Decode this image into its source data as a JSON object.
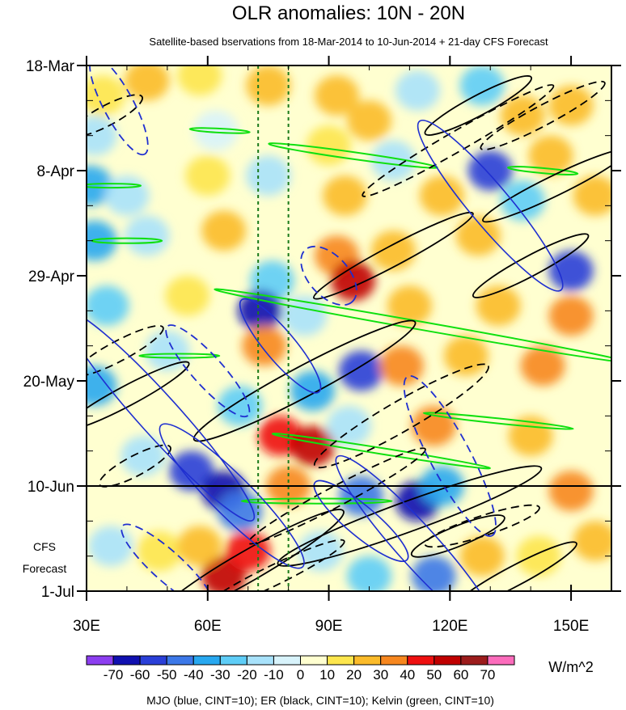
{
  "chart_data": {
    "type": "heatmap",
    "title": "OLR anomalies: 10N - 20N",
    "subtitle": "Satellite-based bservations from 18-Mar-2014 to 10-Jun-2014 + 21-day CFS Forecast",
    "xlabel": "",
    "ylabel": "",
    "x_range_deg_east": [
      30,
      160
    ],
    "x_ticks": [
      {
        "value": 30,
        "label": "30E"
      },
      {
        "value": 60,
        "label": "60E"
      },
      {
        "value": 90,
        "label": "90E"
      },
      {
        "value": 120,
        "label": "120E"
      },
      {
        "value": 150,
        "label": "150E"
      }
    ],
    "y_range_days": [
      0,
      105
    ],
    "y_ticks": [
      {
        "day": 0,
        "label": "18-Mar"
      },
      {
        "day": 21,
        "label": "8-Apr"
      },
      {
        "day": 42,
        "label": "29-Apr"
      },
      {
        "day": 63,
        "label": "20-May"
      },
      {
        "day": 84,
        "label": "10-Jun"
      },
      {
        "day": 105,
        "label": "1-Jul"
      }
    ],
    "forecast_label_lines": [
      "CFS",
      "Forecast"
    ],
    "observation_end_day": 84,
    "reference_longitudes": [
      72.5,
      80
    ],
    "colorbar": {
      "unit": "W/m^2",
      "levels": [
        -70,
        -60,
        -50,
        -40,
        -30,
        -20,
        -10,
        0,
        10,
        20,
        30,
        40,
        50,
        60,
        70
      ],
      "colors": [
        "#8c3ef0",
        "#1010b0",
        "#2a3fd8",
        "#3c78e8",
        "#28a8f0",
        "#5ecdf7",
        "#a8e2fb",
        "#d8f3fb",
        "#ffffd0",
        "#fde64d",
        "#fbbb2a",
        "#f7871f",
        "#ee1010",
        "#c00000",
        "#9c1c1c",
        "#fc6cbc"
      ]
    },
    "cells_note": "OLR anomaly (W/m^2) by longitude (deg E) and day since 18-Mar",
    "cells": [
      {
        "lon": 34,
        "day": 6,
        "value": 15
      },
      {
        "lon": 45,
        "day": 3,
        "value": 20
      },
      {
        "lon": 58,
        "day": 2,
        "value": 15
      },
      {
        "lon": 75,
        "day": 4,
        "value": 20
      },
      {
        "lon": 92,
        "day": 6,
        "value": 25
      },
      {
        "lon": 100,
        "day": 11,
        "value": 25
      },
      {
        "lon": 112,
        "day": 5,
        "value": -15
      },
      {
        "lon": 128,
        "day": 4,
        "value": -30
      },
      {
        "lon": 138,
        "day": 10,
        "value": 25
      },
      {
        "lon": 150,
        "day": 8,
        "value": 25
      },
      {
        "lon": 32,
        "day": 14,
        "value": -15
      },
      {
        "lon": 62,
        "day": 13,
        "value": -10
      },
      {
        "lon": 90,
        "day": 16,
        "value": 15
      },
      {
        "lon": 106,
        "day": 19,
        "value": -20
      },
      {
        "lon": 130,
        "day": 21,
        "value": -55
      },
      {
        "lon": 145,
        "day": 18,
        "value": 20
      },
      {
        "lon": 31,
        "day": 24,
        "value": -40
      },
      {
        "lon": 40,
        "day": 26,
        "value": -15
      },
      {
        "lon": 60,
        "day": 22,
        "value": 15
      },
      {
        "lon": 75,
        "day": 22,
        "value": -15
      },
      {
        "lon": 94,
        "day": 26,
        "value": 25
      },
      {
        "lon": 118,
        "day": 26,
        "value": 20
      },
      {
        "lon": 138,
        "day": 27,
        "value": -25
      },
      {
        "lon": 156,
        "day": 26,
        "value": 20
      },
      {
        "lon": 32,
        "day": 35,
        "value": -40
      },
      {
        "lon": 45,
        "day": 34,
        "value": -20
      },
      {
        "lon": 64,
        "day": 33,
        "value": 20
      },
      {
        "lon": 92,
        "day": 38,
        "value": 30
      },
      {
        "lon": 96,
        "day": 43,
        "value": 50
      },
      {
        "lon": 106,
        "day": 37,
        "value": 20
      },
      {
        "lon": 127,
        "day": 34,
        "value": 20
      },
      {
        "lon": 150,
        "day": 41,
        "value": -60
      },
      {
        "lon": 76,
        "day": 43,
        "value": -30
      },
      {
        "lon": 73,
        "day": 49,
        "value": -65
      },
      {
        "lon": 35,
        "day": 48,
        "value": -25
      },
      {
        "lon": 55,
        "day": 46,
        "value": 15
      },
      {
        "lon": 84,
        "day": 50,
        "value": -20
      },
      {
        "lon": 110,
        "day": 48,
        "value": 25
      },
      {
        "lon": 132,
        "day": 48,
        "value": 20
      },
      {
        "lon": 150,
        "day": 50,
        "value": 30
      },
      {
        "lon": 32,
        "day": 64,
        "value": -40
      },
      {
        "lon": 50,
        "day": 57,
        "value": -20
      },
      {
        "lon": 74,
        "day": 56,
        "value": 30
      },
      {
        "lon": 98,
        "day": 61,
        "value": -60
      },
      {
        "lon": 108,
        "day": 60,
        "value": 35
      },
      {
        "lon": 124,
        "day": 58,
        "value": 25
      },
      {
        "lon": 143,
        "day": 60,
        "value": 30
      },
      {
        "lon": 86,
        "day": 65,
        "value": -35
      },
      {
        "lon": 68,
        "day": 68,
        "value": -30
      },
      {
        "lon": 78,
        "day": 74,
        "value": 45
      },
      {
        "lon": 86,
        "day": 76,
        "value": 55
      },
      {
        "lon": 95,
        "day": 72,
        "value": -20
      },
      {
        "lon": 116,
        "day": 72,
        "value": 30
      },
      {
        "lon": 140,
        "day": 74,
        "value": 20
      },
      {
        "lon": 44,
        "day": 78,
        "value": -20
      },
      {
        "lon": 56,
        "day": 81,
        "value": -60
      },
      {
        "lon": 64,
        "day": 85,
        "value": -70
      },
      {
        "lon": 68,
        "day": 89,
        "value": -45
      },
      {
        "lon": 80,
        "day": 84,
        "value": 30
      },
      {
        "lon": 98,
        "day": 86,
        "value": -50
      },
      {
        "lon": 112,
        "day": 87,
        "value": -70
      },
      {
        "lon": 118,
        "day": 84,
        "value": -40
      },
      {
        "lon": 150,
        "day": 85,
        "value": 30
      },
      {
        "lon": 36,
        "day": 96,
        "value": -15
      },
      {
        "lon": 48,
        "day": 97,
        "value": 15
      },
      {
        "lon": 64,
        "day": 102,
        "value": 55
      },
      {
        "lon": 70,
        "day": 97,
        "value": 40
      },
      {
        "lon": 58,
        "day": 96,
        "value": 25
      },
      {
        "lon": 88,
        "day": 97,
        "value": -15
      },
      {
        "lon": 100,
        "day": 102,
        "value": -25
      },
      {
        "lon": 116,
        "day": 102,
        "value": -45
      },
      {
        "lon": 128,
        "day": 98,
        "value": 20
      },
      {
        "lon": 142,
        "day": 98,
        "value": 15
      },
      {
        "lon": 156,
        "day": 95,
        "value": 25
      }
    ],
    "contour_legend": "MJO (blue, CINT=10); ER (black, CINT=10); Kelvin (green, CINT=10)",
    "contour_colors": {
      "mjo": "#1f2fd0",
      "er": "#000000",
      "kelvin": "#10e010"
    },
    "mjo_positive_ellipses": [
      {
        "lon": 48,
        "day": 70,
        "half_length": 28,
        "half_width": 4,
        "angle": 48
      },
      {
        "lon": 66,
        "day": 86,
        "half_length": 20,
        "half_width": 4,
        "angle": 45
      },
      {
        "lon": 78,
        "day": 56,
        "half_length": 12,
        "half_width": 3,
        "angle": 50
      },
      {
        "lon": 112,
        "day": 96,
        "half_length": 24,
        "half_width": 4,
        "angle": 48
      },
      {
        "lon": 130,
        "day": 28,
        "half_length": 22,
        "half_width": 4,
        "angle": 50
      },
      {
        "lon": 98,
        "day": 91,
        "half_length": 12,
        "half_width": 3,
        "angle": 40
      }
    ],
    "mjo_negative_ellipses": [
      {
        "lon": 38,
        "day": 8,
        "half_length": 11,
        "half_width": 3,
        "angle": 62
      },
      {
        "lon": 90,
        "day": 42,
        "half_length": 7,
        "half_width": 4,
        "angle": 48
      },
      {
        "lon": 60,
        "day": 61,
        "half_length": 12,
        "half_width": 3,
        "angle": 48
      },
      {
        "lon": 120,
        "day": 78,
        "half_length": 18,
        "half_width": 4,
        "angle": 62
      },
      {
        "lon": 50,
        "day": 100,
        "half_length": 12,
        "half_width": 3,
        "angle": 42
      }
    ],
    "er_positive_ellipses": [
      {
        "lon": 106,
        "day": 38,
        "half_length": 18,
        "half_width": 2,
        "angle": -28
      },
      {
        "lon": 84,
        "day": 63,
        "half_length": 25,
        "half_width": 3,
        "angle": -28
      },
      {
        "lon": 70,
        "day": 100,
        "half_length": 22,
        "half_width": 3,
        "angle": -30
      },
      {
        "lon": 40,
        "day": 66,
        "half_length": 14,
        "half_width": 2,
        "angle": -28
      },
      {
        "lon": 110,
        "day": 90,
        "half_length": 28,
        "half_width": 3,
        "angle": -20
      },
      {
        "lon": 140,
        "day": 40,
        "half_length": 13,
        "half_width": 2,
        "angle": -28
      },
      {
        "lon": 146,
        "day": 24,
        "half_length": 16,
        "half_width": 2,
        "angle": -26
      },
      {
        "lon": 127,
        "day": 8,
        "half_length": 12,
        "half_width": 2,
        "angle": -28
      },
      {
        "lon": 122,
        "day": 94,
        "half_length": 10,
        "half_width": 2,
        "angle": -22
      },
      {
        "lon": 136,
        "day": 102,
        "half_length": 14,
        "half_width": 2,
        "angle": -28
      }
    ],
    "er_negative_ellipses": [
      {
        "lon": 35,
        "day": 10,
        "half_length": 8,
        "half_width": 2,
        "angle": -28
      },
      {
        "lon": 122,
        "day": 15,
        "half_length": 22,
        "half_width": 2,
        "angle": -30
      },
      {
        "lon": 38,
        "day": 57,
        "half_length": 10,
        "half_width": 2,
        "angle": -28
      },
      {
        "lon": 108,
        "day": 70,
        "half_length": 20,
        "half_width": 3,
        "angle": -30
      },
      {
        "lon": 42,
        "day": 80,
        "half_length": 8,
        "half_width": 2,
        "angle": -28
      },
      {
        "lon": 92,
        "day": 86,
        "half_length": 20,
        "half_width": 2,
        "angle": -28
      },
      {
        "lon": 76,
        "day": 102,
        "half_length": 16,
        "half_width": 2,
        "angle": -26
      },
      {
        "lon": 143,
        "day": 10,
        "half_length": 14,
        "half_width": 2,
        "angle": -28
      },
      {
        "lon": 128,
        "day": 92,
        "half_length": 12,
        "half_width": 2,
        "angle": -18
      }
    ],
    "kelvin_ellipses": [
      {
        "lon": 63,
        "day": 13,
        "half_length": 6,
        "half_width": 0.4,
        "angle": 3
      },
      {
        "lon": 96,
        "day": 18,
        "half_length": 17,
        "half_width": 0.7,
        "angle": 8
      },
      {
        "lon": 143,
        "day": 21,
        "half_length": 7,
        "half_width": 0.5,
        "angle": 5
      },
      {
        "lon": 36,
        "day": 24,
        "half_length": 6,
        "half_width": 0.4,
        "angle": 0
      },
      {
        "lon": 40,
        "day": 35,
        "half_length": 7,
        "half_width": 0.5,
        "angle": 0
      },
      {
        "lon": 113,
        "day": 52,
        "half_length": 42,
        "half_width": 0.8,
        "angle": 10
      },
      {
        "lon": 53,
        "day": 58,
        "half_length": 8,
        "half_width": 0.4,
        "angle": 0
      },
      {
        "lon": 103,
        "day": 77,
        "half_length": 22,
        "half_width": 0.6,
        "angle": 9
      },
      {
        "lon": 132,
        "day": 71,
        "half_length": 15,
        "half_width": 0.5,
        "angle": 6
      },
      {
        "lon": 87,
        "day": 87,
        "half_length": 15,
        "half_width": 0.5,
        "angle": 0
      }
    ]
  }
}
